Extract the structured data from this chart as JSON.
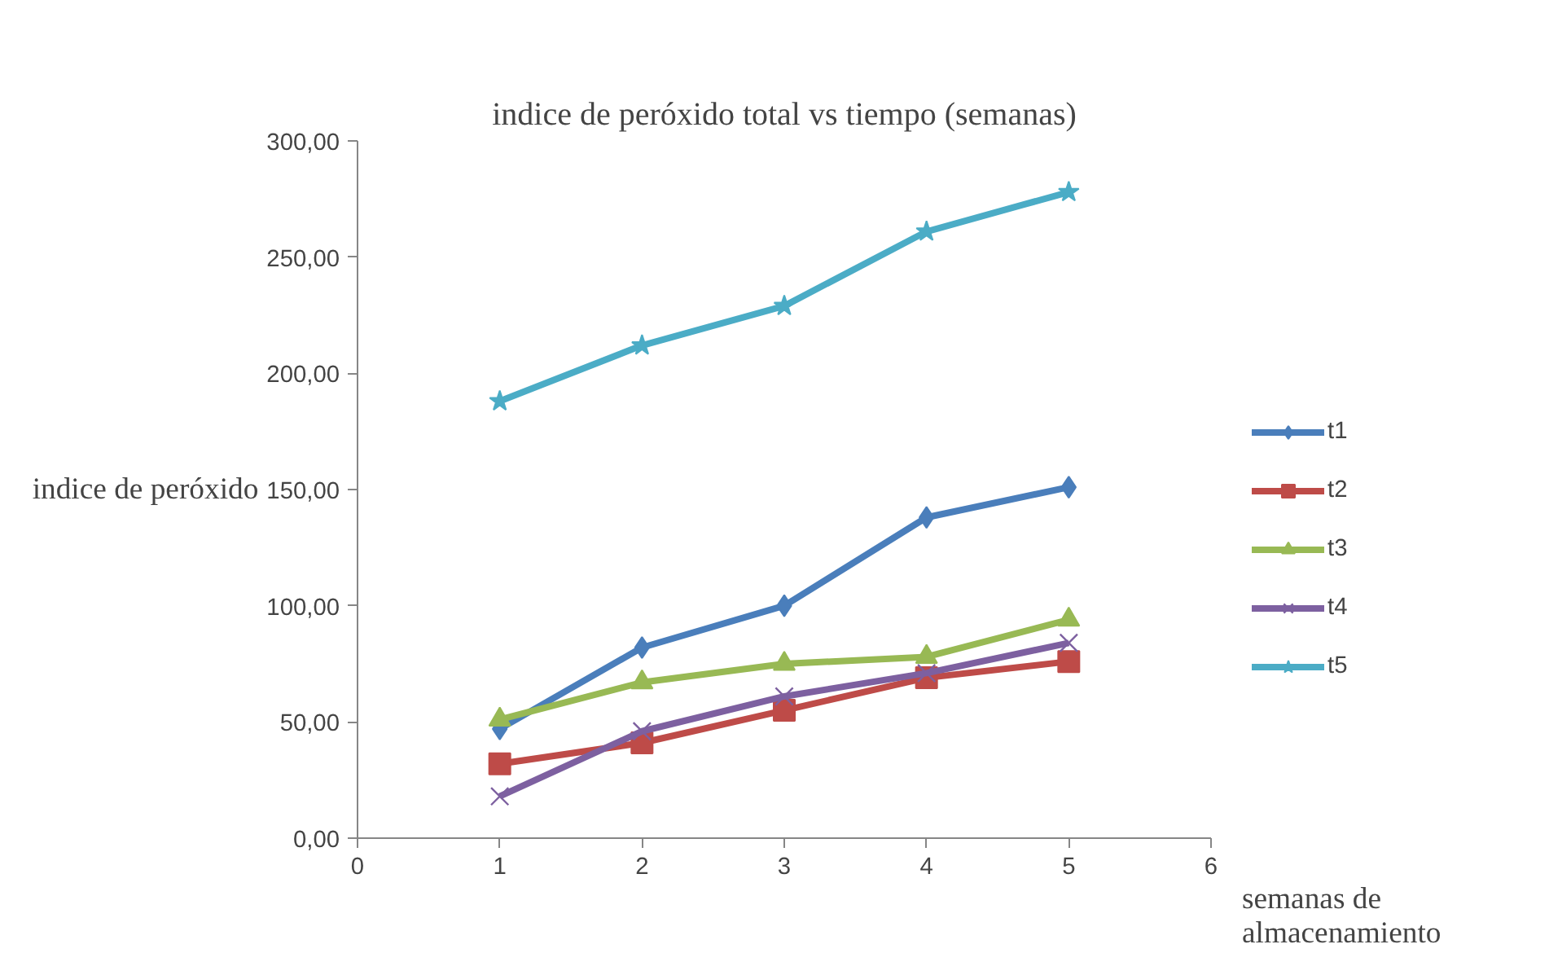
{
  "chart_data": {
    "type": "line",
    "title": "indice de peróxido total vs tiempo (semanas)",
    "xlabel": "semanas de almacenamiento",
    "ylabel": "indice de peróxido",
    "x": [
      1,
      2,
      3,
      4,
      5
    ],
    "series": [
      {
        "name": "t1",
        "color": "#4a7ebb",
        "marker": "diamond",
        "values": [
          47,
          82,
          100,
          138,
          151
        ]
      },
      {
        "name": "t2",
        "color": "#be4b48",
        "marker": "square",
        "values": [
          32,
          41,
          55,
          69,
          76
        ]
      },
      {
        "name": "t3",
        "color": "#98b954",
        "marker": "triangle",
        "values": [
          51,
          67,
          75,
          78,
          94
        ]
      },
      {
        "name": "t4",
        "color": "#7d60a0",
        "marker": "cross",
        "values": [
          18,
          46,
          61,
          71,
          84
        ]
      },
      {
        "name": "t5",
        "color": "#4bacc6",
        "marker": "star",
        "values": [
          188,
          212,
          229,
          261,
          278
        ]
      }
    ],
    "xlim": [
      0,
      6
    ],
    "xticks": [
      0,
      1,
      2,
      3,
      4,
      5,
      6
    ],
    "ylim": [
      0,
      300
    ],
    "yticks": [
      {
        "value": 0,
        "label": "0,00"
      },
      {
        "value": 50,
        "label": "50,00"
      },
      {
        "value": 100,
        "label": "100,00"
      },
      {
        "value": 150,
        "label": "150,00"
      },
      {
        "value": 200,
        "label": "200,00"
      },
      {
        "value": 250,
        "label": "250,00"
      },
      {
        "value": 300,
        "label": "300,00"
      }
    ],
    "grid": false,
    "legend": "right",
    "line_style": "solid"
  }
}
